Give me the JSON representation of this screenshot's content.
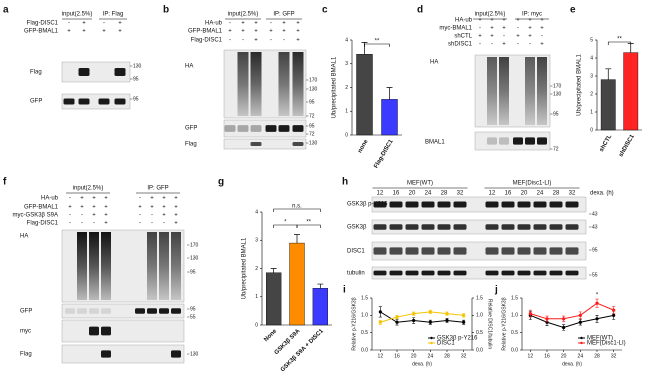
{
  "blots": {
    "a": {
      "letter": "a",
      "groups": [
        "input(2.5%)",
        "IP: Flag"
      ],
      "rows": [
        {
          "label": "Flag-DISC1",
          "signs": [
            "-",
            "+",
            "-",
            "+"
          ]
        },
        {
          "label": "GFP-BMAL1",
          "signs": [
            "+",
            "+",
            "+",
            "+"
          ]
        }
      ],
      "bands": [
        "Flag",
        "GFP"
      ],
      "markers": [
        "130",
        "95",
        "95"
      ]
    },
    "b": {
      "letter": "b",
      "groups": [
        "input(2.5%)",
        "IP: GFP"
      ],
      "rows": [
        {
          "label": "HA-ub",
          "signs": [
            "-",
            "+",
            "+",
            "-",
            "+",
            "+"
          ]
        },
        {
          "label": "GFP-BMAL1",
          "signs": [
            "+",
            "+",
            "+",
            "+",
            "+",
            "+"
          ]
        },
        {
          "label": "Flag-DISC1",
          "signs": [
            "-",
            "-",
            "+",
            "-",
            "-",
            "+"
          ]
        }
      ],
      "bands": [
        "HA",
        "GFP",
        "Flag"
      ],
      "markers": [
        "170",
        "130",
        "95",
        "72",
        "95",
        "72",
        "130"
      ]
    },
    "d": {
      "letter": "d",
      "groups": [
        "input(2.5%)",
        "IP: myc"
      ],
      "rows": [
        {
          "label": "HA-ub",
          "signs": [
            "+",
            "+",
            "+",
            "+",
            "+",
            "+"
          ]
        },
        {
          "label": "myc-BMAL1",
          "signs": [
            "-",
            "+",
            "+",
            "-",
            "+",
            "+"
          ]
        },
        {
          "label": "shCTL",
          "signs": [
            "+",
            "+",
            "-",
            "+",
            "+",
            "-"
          ]
        },
        {
          "label": "shDISC1",
          "signs": [
            "-",
            "-",
            "+",
            "-",
            "-",
            "+"
          ]
        }
      ],
      "bands": [
        "HA",
        "BMAL1"
      ],
      "markers": [
        "170",
        "130",
        "95",
        "72"
      ]
    },
    "f": {
      "letter": "f",
      "groups": [
        "input(2.5%)",
        "IP: GFP"
      ],
      "rows": [
        {
          "label": "HA-ub",
          "signs": [
            "-",
            "+",
            "+",
            "+",
            "-",
            "+",
            "+",
            "+"
          ]
        },
        {
          "label": "GFP-BMAL1",
          "signs": [
            "+",
            "+",
            "+",
            "+",
            "+",
            "+",
            "+",
            "+"
          ]
        },
        {
          "label": "myc-GSK3β S9A",
          "signs": [
            "-",
            "-",
            "+",
            "+",
            "-",
            "-",
            "+",
            "+"
          ]
        },
        {
          "label": "Flag-DISC1",
          "signs": [
            "-",
            "-",
            "-",
            "+",
            "-",
            "-",
            "-",
            "+"
          ]
        }
      ],
      "bands": [
        "HA",
        "GFP",
        "myc",
        "Flag"
      ],
      "markers": [
        "170",
        "130",
        "95",
        "95",
        "55",
        "130"
      ]
    },
    "h": {
      "letter": "h",
      "groups": [
        "MEF(WT)",
        "MEF(Disc1-LI)"
      ],
      "lanes": [
        "12",
        "16",
        "20",
        "24",
        "28",
        "32",
        "12",
        "16",
        "20",
        "24",
        "28",
        "32"
      ],
      "lane_unit": "dexa. (h)",
      "bands": [
        "GSK3β p-Y216",
        "GSK3β",
        "DISC1",
        "tubulin"
      ],
      "markers": [
        "43",
        "43",
        "95",
        "55"
      ]
    }
  },
  "chart_data": [
    {
      "type": "bar",
      "letter": "c",
      "ylabel": "Ub/precipitated BMAL1",
      "categories": [
        "none",
        "Flag-DISC1"
      ],
      "values": [
        3.4,
        1.5
      ],
      "errors": [
        0.5,
        0.5
      ],
      "colors": [
        "#454545",
        "#3b3bff"
      ],
      "ylim": [
        0,
        4
      ],
      "yticks": [
        0,
        1,
        2,
        3,
        4
      ],
      "annotations": [
        "**"
      ]
    },
    {
      "type": "bar",
      "letter": "e",
      "ylabel": "Ub/precipitated BMAL1",
      "categories": [
        "shCTL",
        "shDISC1"
      ],
      "values": [
        2.8,
        4.3
      ],
      "errors": [
        0.6,
        0.5
      ],
      "colors": [
        "#454545",
        "#ff2424"
      ],
      "ylim": [
        0,
        5
      ],
      "yticks": [
        0,
        1,
        2,
        3,
        4,
        5
      ],
      "annotations": [
        "**"
      ]
    },
    {
      "type": "bar",
      "letter": "g",
      "ylabel": "Ub/precipitated BMAL1",
      "categories": [
        "None",
        "GSK3β S9A",
        "GSK3β S9A + DISC1"
      ],
      "values": [
        1.85,
        2.9,
        1.3
      ],
      "errors": [
        0.15,
        0.3,
        0.15
      ],
      "colors": [
        "#454545",
        "#ff8c00",
        "#3b3bff"
      ],
      "ylim": [
        0,
        4
      ],
      "yticks": [
        0,
        1,
        2,
        3,
        4
      ],
      "annotations": [
        "n.s.",
        "*",
        "**"
      ]
    },
    {
      "type": "line",
      "letter": "i",
      "ylabel": "Relative p-Y216/GSK3β",
      "y2label": "Relative DISC1/tubulin",
      "xlabel": "dexa. (h)",
      "x": [
        12,
        16,
        20,
        24,
        28,
        32
      ],
      "xlim": [
        10,
        34
      ],
      "xticks": [
        12,
        16,
        20,
        24,
        28,
        32
      ],
      "ylim": [
        0,
        1.5
      ],
      "yticks": [
        {
          "value": 0,
          "label": "0.0"
        },
        {
          "value": 0.5,
          "label": "0.5"
        },
        {
          "value": 1,
          "label": "1.0"
        },
        {
          "value": 1.5,
          "label": "1.5"
        }
      ],
      "y2lim": [
        0,
        1.5
      ],
      "y2ticks": [
        {
          "value": 0,
          "label": "0.0"
        },
        {
          "value": 0.5,
          "label": "0.5"
        },
        {
          "value": 1,
          "label": "1.0"
        },
        {
          "value": 1.5,
          "label": "1.5"
        }
      ],
      "series": [
        {
          "name": "GSK3β p-Y216",
          "color": "#000000",
          "values": [
            1.1,
            0.8,
            0.85,
            0.8,
            0.85,
            0.8
          ],
          "errors": [
            0.15,
            0.08,
            0.08,
            0.06,
            0.06,
            0.06
          ]
        },
        {
          "name": "DISC1",
          "color": "#f5c400",
          "axis": "y2",
          "values": [
            0.8,
            0.95,
            1.05,
            1.1,
            1.05,
            1.0
          ],
          "errors": [
            0.06,
            0.05,
            0.05,
            0.05,
            0.05,
            0.05
          ]
        }
      ],
      "legend": "lower right"
    },
    {
      "type": "line",
      "letter": "j",
      "ylabel": "Relative p-Y216/GSK3β",
      "xlabel": "dexa. (h)",
      "x": [
        12,
        16,
        20,
        24,
        28,
        32
      ],
      "xlim": [
        10,
        34
      ],
      "xticks": [
        12,
        16,
        20,
        24,
        28,
        32
      ],
      "ylim": [
        0,
        1.5
      ],
      "yticks": [
        {
          "value": 0,
          "label": "0.0"
        },
        {
          "value": 0.5,
          "label": "0.5"
        },
        {
          "value": 1,
          "label": "1.0"
        },
        {
          "value": 1.5,
          "label": "1.5"
        }
      ],
      "series": [
        {
          "name": "MEF(WT)",
          "color": "#000000",
          "values": [
            1.0,
            0.8,
            0.65,
            0.8,
            0.9,
            1.0
          ],
          "errors": [
            0.12,
            0.1,
            0.08,
            0.08,
            0.1,
            0.12
          ]
        },
        {
          "name": "MEF(Disc1-LI)",
          "color": "#ff1a1a",
          "values": [
            1.05,
            0.9,
            0.9,
            1.0,
            1.35,
            1.15
          ],
          "errors": [
            0.1,
            0.08,
            0.08,
            0.1,
            0.12,
            0.1
          ]
        }
      ],
      "legend": "lower right",
      "annotations": [
        "*"
      ]
    }
  ]
}
